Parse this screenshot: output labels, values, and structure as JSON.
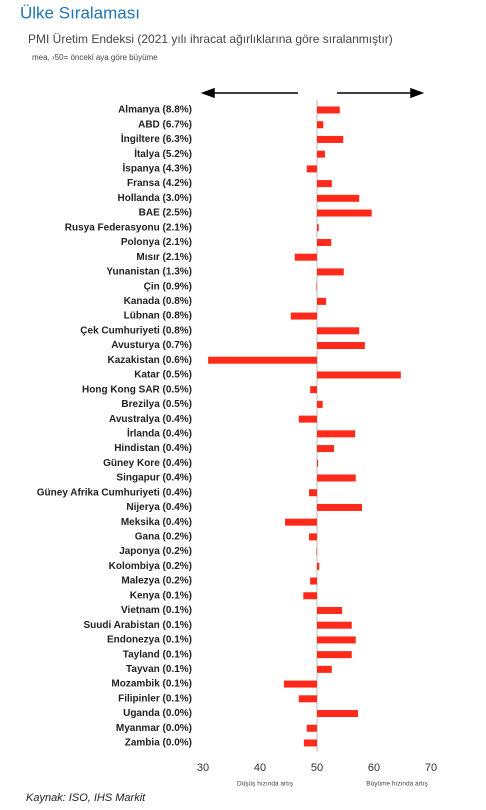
{
  "chart_data": {
    "type": "bar",
    "orientation": "horizontal",
    "title": "Ülke Sıralaması",
    "subtitle": "PMI Üretim Endeksi (2021 yılı ihracat ağırlıklarına göre sıralanmıştır)",
    "note": "mea, ›50= önceki aya göre büyüme",
    "categories": [
      "Almanya (8.8%)",
      "ABD (6.7%)",
      "İngiltere (6.3%)",
      "İtalya (5.2%)",
      "İspanya (4.3%)",
      "Fransa (4.2%)",
      "Hollanda (3.0%)",
      "BAE (2.5%)",
      "Rusya Federasyonu (2.1%)",
      "Polonya (2.1%)",
      "Mısır (2.1%)",
      "Yunanistan (1.3%)",
      "Çin (0.9%)",
      "Kanada (0.8%)",
      "Lübnan (0.8%)",
      "Çek Cumhuriyeti (0.8%)",
      "Avusturya (0.7%)",
      "Kazakistan (0.6%)",
      "Katar (0.5%)",
      "Hong Kong SAR (0.5%)",
      "Brezilya (0.5%)",
      "Avustralya (0.4%)",
      "İrlanda (0.4%)",
      "Hindistan (0.4%)",
      "Güney Kore (0.4%)",
      "Singapur (0.4%)",
      "Güney Afrika Cumhuriyeti (0.4%)",
      "Nijerya (0.4%)",
      "Meksika (0.4%)",
      "Gana (0.2%)",
      "Japonya (0.2%)",
      "Kolombiya (0.2%)",
      "Malezya (0.2%)",
      "Kenya (0.1%)",
      "Vietnam (0.1%)",
      "Suudi Arabistan (0.1%)",
      "Endonezya (0.1%)",
      "Tayland (0.1%)",
      "Tayvan (0.1%)",
      "Mozambik (0.1%)",
      "Filipinler (0.1%)",
      "Uganda (0.0%)",
      "Myanmar (0.0%)",
      "Zambia (0.0%)"
    ],
    "values": [
      54.0,
      51.1,
      54.6,
      51.4,
      48.2,
      52.6,
      57.4,
      59.6,
      50.3,
      52.5,
      46.1,
      54.7,
      49.9,
      51.6,
      45.4,
      57.4,
      58.4,
      30.9,
      64.7,
      48.8,
      51.0,
      46.8,
      56.7,
      53.0,
      50.2,
      56.8,
      48.6,
      57.9,
      44.4,
      48.6,
      49.9,
      50.4,
      48.8,
      47.6,
      54.4,
      56.1,
      56.8,
      56.1,
      52.6,
      44.2,
      46.8,
      57.2,
      48.2,
      47.7
    ],
    "color": "#ff2a1a",
    "baseline": 50,
    "xlim": [
      30,
      70
    ],
    "xticks": [
      30,
      40,
      50,
      60,
      70
    ],
    "left_label": "Düşüş hızında artış",
    "right_label": "Büyüme hızında artış",
    "source": "Kaynak: ISO, IHS Markit"
  }
}
